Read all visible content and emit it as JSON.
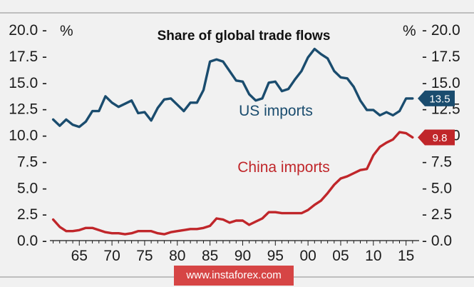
{
  "chart_data": {
    "type": "line",
    "title": "Share of global trade flows",
    "unit_left": "%",
    "unit_right": "%",
    "ylim": [
      0,
      20
    ],
    "yticks": [
      "0.0",
      "2.5",
      "5.0",
      "7.5",
      "10.0",
      "12.5",
      "15.0",
      "17.5",
      "20.0"
    ],
    "xlim": [
      1960.5,
      2017
    ],
    "xticks": [
      {
        "year": 1965,
        "label": "65"
      },
      {
        "year": 1970,
        "label": "70"
      },
      {
        "year": 1975,
        "label": "75"
      },
      {
        "year": 1980,
        "label": "80"
      },
      {
        "year": 1985,
        "label": "85"
      },
      {
        "year": 1990,
        "label": "90"
      },
      {
        "year": 1995,
        "label": "95"
      },
      {
        "year": 2000,
        "label": "00"
      },
      {
        "year": 2005,
        "label": "05"
      },
      {
        "year": 2010,
        "label": "10"
      },
      {
        "year": 2015,
        "label": "15"
      }
    ],
    "grid": false,
    "series": [
      {
        "name": "US imports",
        "color": "#1a4c6e",
        "x": [
          1961,
          1962,
          1963,
          1964,
          1965,
          1966,
          1967,
          1968,
          1969,
          1970,
          1971,
          1972,
          1973,
          1974,
          1975,
          1976,
          1977,
          1978,
          1979,
          1980,
          1981,
          1982,
          1983,
          1984,
          1985,
          1986,
          1987,
          1988,
          1989,
          1990,
          1991,
          1992,
          1993,
          1994,
          1995,
          1996,
          1997,
          1998,
          1999,
          2000,
          2001,
          2002,
          2003,
          2004,
          2005,
          2006,
          2007,
          2008,
          2009,
          2010,
          2011,
          2012,
          2013,
          2014,
          2015,
          2016
        ],
        "values": [
          11.5,
          10.9,
          11.5,
          11.0,
          10.8,
          11.3,
          12.3,
          12.3,
          13.7,
          13.1,
          12.7,
          13.0,
          13.3,
          12.1,
          12.2,
          11.4,
          12.6,
          13.4,
          13.5,
          12.9,
          12.3,
          13.1,
          13.1,
          14.3,
          17.0,
          17.2,
          17.0,
          16.1,
          15.2,
          15.1,
          13.9,
          13.3,
          13.5,
          15.0,
          15.1,
          14.2,
          14.4,
          15.3,
          16.1,
          17.4,
          18.2,
          17.7,
          17.3,
          16.1,
          15.5,
          15.4,
          14.6,
          13.3,
          12.4,
          12.4,
          11.9,
          12.2,
          11.9,
          12.3,
          13.5,
          13.5
        ],
        "callout": "13.5"
      },
      {
        "name": "China imports",
        "color": "#c0262a",
        "x": [
          1961,
          1962,
          1963,
          1964,
          1965,
          1966,
          1967,
          1968,
          1969,
          1970,
          1971,
          1972,
          1973,
          1974,
          1975,
          1976,
          1977,
          1978,
          1979,
          1980,
          1981,
          1982,
          1983,
          1984,
          1985,
          1986,
          1987,
          1988,
          1989,
          1990,
          1991,
          1992,
          1993,
          1994,
          1995,
          1996,
          1997,
          1998,
          1999,
          2000,
          2001,
          2002,
          2003,
          2004,
          2005,
          2006,
          2007,
          2008,
          2009,
          2010,
          2011,
          2012,
          2013,
          2014,
          2015,
          2016
        ],
        "values": [
          2.0,
          1.3,
          0.9,
          0.9,
          1.0,
          1.2,
          1.2,
          1.0,
          0.8,
          0.7,
          0.7,
          0.6,
          0.7,
          0.9,
          0.9,
          0.9,
          0.7,
          0.6,
          0.8,
          0.9,
          1.0,
          1.1,
          1.1,
          1.2,
          1.4,
          2.1,
          2.0,
          1.7,
          1.9,
          1.9,
          1.5,
          1.8,
          2.1,
          2.7,
          2.7,
          2.6,
          2.6,
          2.6,
          2.6,
          2.9,
          3.4,
          3.8,
          4.5,
          5.3,
          5.9,
          6.1,
          6.4,
          6.7,
          6.8,
          8.1,
          8.9,
          9.3,
          9.6,
          10.3,
          10.2,
          9.8
        ],
        "callout": "9.8"
      }
    ]
  },
  "watermark": "www.instaforex.com"
}
